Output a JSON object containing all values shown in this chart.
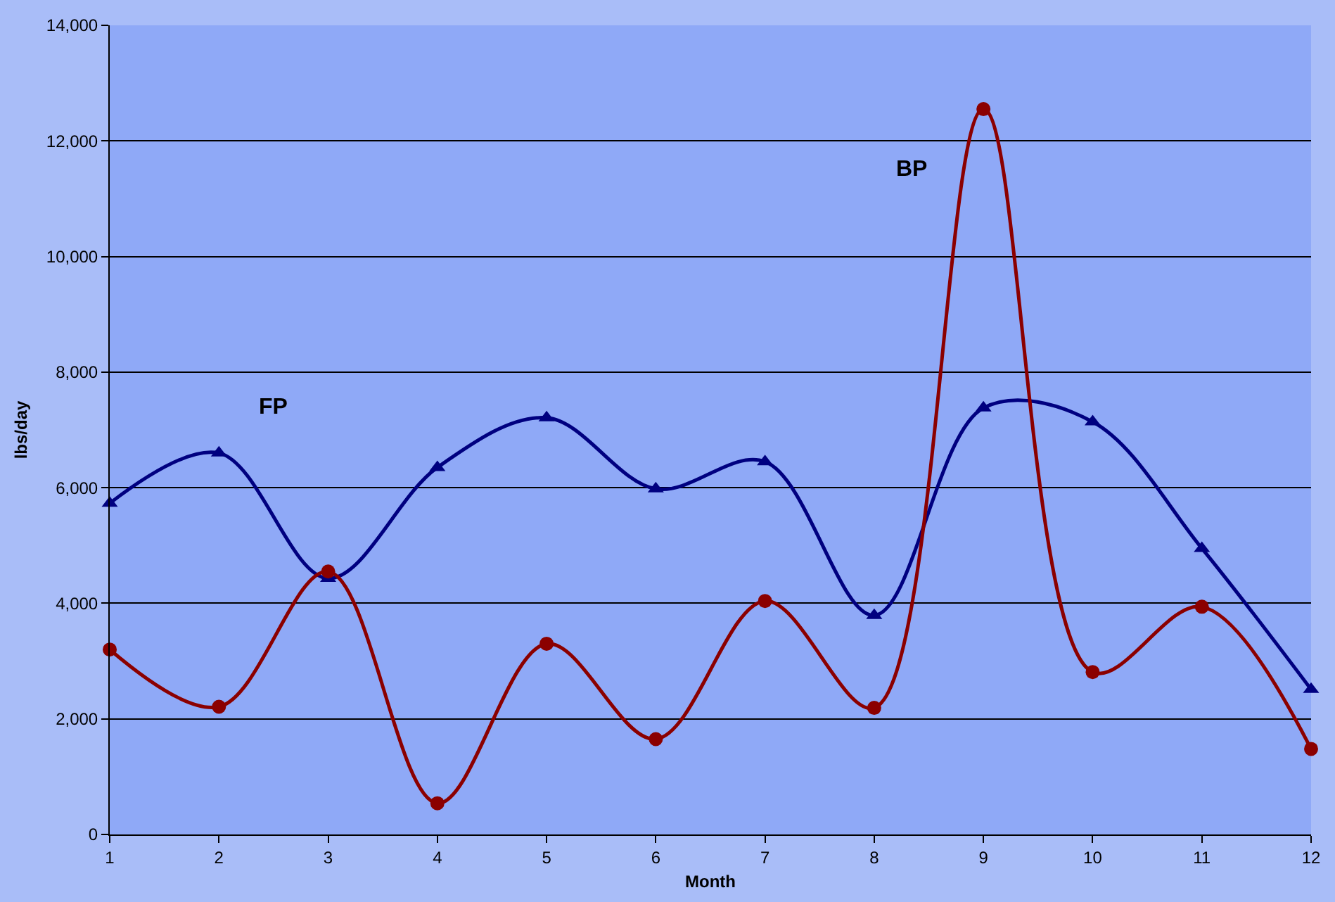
{
  "chart_data": {
    "type": "line",
    "xlabel": "Month",
    "ylabel": "lbs/day",
    "x": [
      1,
      2,
      3,
      4,
      5,
      6,
      7,
      8,
      9,
      10,
      11,
      12
    ],
    "series": [
      {
        "name": "FP",
        "color": "#000080",
        "marker": "triangle",
        "values": [
          5730,
          6600,
          4430,
          6350,
          7210,
          5980,
          6450,
          3790,
          7380,
          7140,
          4950,
          2510
        ]
      },
      {
        "name": "BP",
        "color": "#8b0000",
        "marker": "circle",
        "values": [
          3200,
          2210,
          4550,
          540,
          3300,
          1650,
          4040,
          2190,
          12550,
          2810,
          3940,
          1480
        ]
      }
    ],
    "xlim": [
      1,
      12
    ],
    "xticks": [
      1,
      2,
      3,
      4,
      5,
      6,
      7,
      8,
      9,
      10,
      11,
      12
    ],
    "ylim": [
      0,
      14000
    ],
    "yticks": [
      0,
      {
        "value": 2000,
        "label": "2,000"
      },
      {
        "value": 4000,
        "label": "4,000"
      },
      {
        "value": 6000,
        "label": "6,000"
      },
      {
        "value": 8000,
        "label": "8,000"
      },
      {
        "value": 10000,
        "label": "10,000"
      },
      {
        "value": 12000,
        "label": "12,000"
      },
      {
        "value": 14000,
        "label": "14,000"
      }
    ],
    "grid": "y",
    "legend": false,
    "line_style": "solid"
  }
}
